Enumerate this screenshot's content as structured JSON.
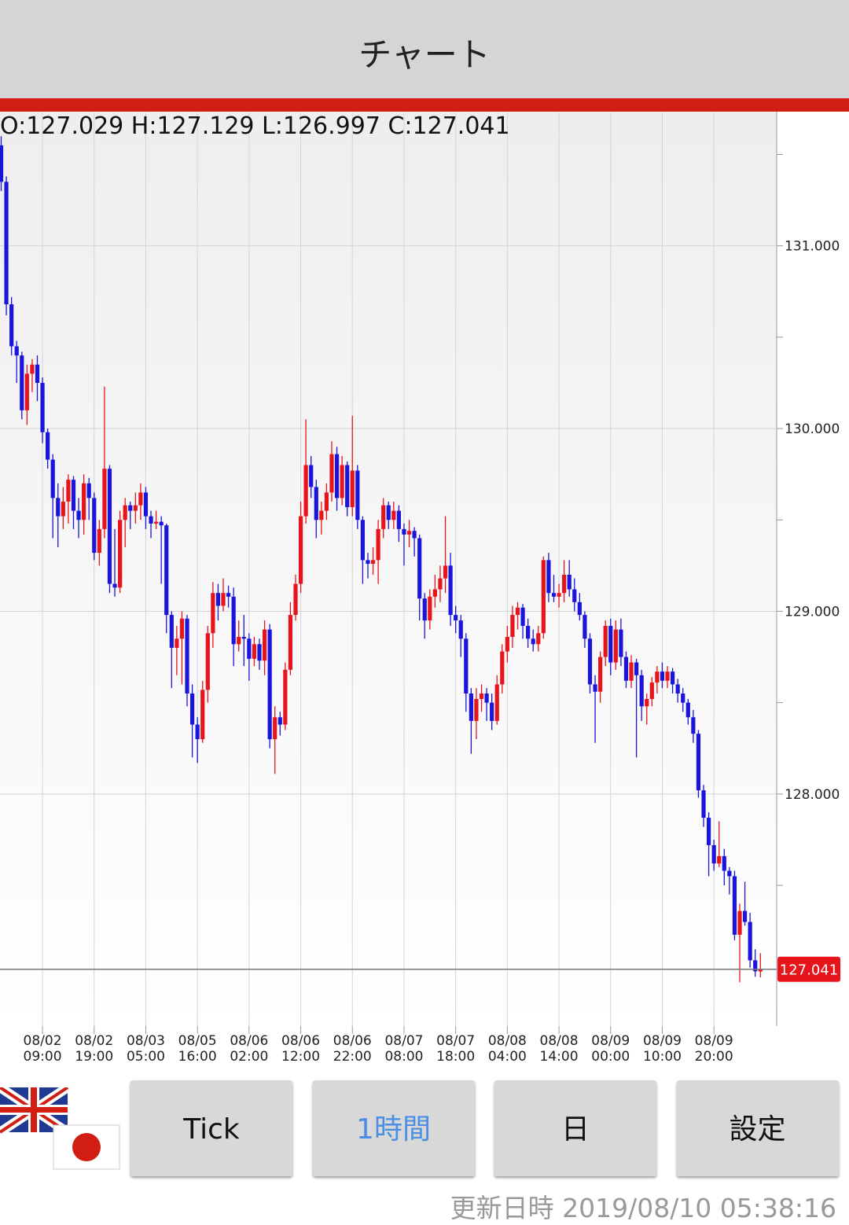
{
  "header": {
    "title": "チャート"
  },
  "readout": "O:127.029 H:127.129 L:126.997 C:127.041",
  "chart_data": {
    "type": "candlestick",
    "up_color": "#e8141c",
    "down_color": "#1a14dc",
    "ylim": [
      126.73,
      131.73
    ],
    "yticks": [
      {
        "value": 128,
        "label": "128.000"
      },
      {
        "value": 129,
        "label": "129.000"
      },
      {
        "value": 130,
        "label": "130.000"
      },
      {
        "value": 131,
        "label": "131.000"
      }
    ],
    "yminor_ticks": [
      127.5,
      128.5,
      129.5,
      130.5,
      131.5
    ],
    "price_line": 127.041,
    "categories": [
      null,
      null,
      null,
      null,
      null,
      null,
      null,
      null,
      "08/02 09:00",
      null,
      null,
      null,
      null,
      null,
      null,
      null,
      null,
      null,
      "08/02 19:00",
      null,
      null,
      null,
      null,
      null,
      null,
      null,
      null,
      null,
      "08/03 05:00",
      null,
      null,
      null,
      null,
      null,
      null,
      null,
      null,
      null,
      "08/05 16:00",
      null,
      null,
      null,
      null,
      null,
      null,
      null,
      null,
      null,
      "08/06 02:00",
      null,
      null,
      null,
      null,
      null,
      null,
      null,
      null,
      null,
      "08/06 12:00",
      null,
      null,
      null,
      null,
      null,
      null,
      null,
      null,
      null,
      "08/06 22:00",
      null,
      null,
      null,
      null,
      null,
      null,
      null,
      null,
      null,
      "08/07 08:00",
      null,
      null,
      null,
      null,
      null,
      null,
      null,
      null,
      null,
      "08/07 18:00",
      null,
      null,
      null,
      null,
      null,
      null,
      null,
      null,
      null,
      "08/08 04:00",
      null,
      null,
      null,
      null,
      null,
      null,
      null,
      null,
      null,
      "08/08 14:00",
      null,
      null,
      null,
      null,
      null,
      null,
      null,
      null,
      null,
      "08/09 00:00",
      null,
      null,
      null,
      null,
      null,
      null,
      null,
      null,
      null,
      "08/09 10:00",
      null,
      null,
      null,
      null,
      null,
      null,
      null,
      null,
      null,
      "08/09 20:00",
      null,
      null,
      null,
      null,
      null,
      null,
      null,
      null,
      null
    ],
    "ohlc": [
      [
        131.55,
        131.6,
        131.3,
        131.35
      ],
      [
        131.35,
        131.38,
        130.62,
        130.68
      ],
      [
        130.68,
        130.72,
        130.4,
        130.45
      ],
      [
        130.45,
        130.48,
        130.25,
        130.4
      ],
      [
        130.4,
        130.42,
        130.05,
        130.1
      ],
      [
        130.1,
        130.35,
        130.02,
        130.3
      ],
      [
        130.3,
        130.38,
        130.2,
        130.35
      ],
      [
        130.35,
        130.4,
        130.15,
        130.25
      ],
      [
        130.25,
        130.28,
        129.92,
        129.98
      ],
      [
        129.98,
        130.0,
        129.78,
        129.83
      ],
      [
        129.83,
        129.86,
        129.4,
        129.62
      ],
      [
        129.62,
        129.7,
        129.35,
        129.52
      ],
      [
        129.52,
        129.68,
        129.45,
        129.6
      ],
      [
        129.6,
        129.75,
        129.48,
        129.72
      ],
      [
        129.72,
        129.74,
        129.45,
        129.55
      ],
      [
        129.55,
        129.62,
        129.4,
        129.5
      ],
      [
        129.5,
        129.75,
        129.42,
        129.7
      ],
      [
        129.7,
        129.73,
        129.5,
        129.62
      ],
      [
        129.62,
        129.65,
        129.28,
        129.32
      ],
      [
        129.32,
        129.5,
        129.25,
        129.45
      ],
      [
        129.45,
        130.23,
        129.4,
        129.78
      ],
      [
        129.78,
        129.8,
        129.1,
        129.15
      ],
      [
        129.15,
        129.45,
        129.08,
        129.13
      ],
      [
        129.13,
        129.55,
        129.1,
        129.5
      ],
      [
        129.5,
        129.62,
        129.35,
        129.58
      ],
      [
        129.58,
        129.6,
        129.45,
        129.55
      ],
      [
        129.55,
        129.65,
        129.48,
        129.58
      ],
      [
        129.58,
        129.7,
        129.5,
        129.65
      ],
      [
        129.65,
        129.68,
        129.45,
        129.52
      ],
      [
        129.52,
        129.55,
        129.4,
        129.48
      ],
      [
        129.48,
        129.55,
        129.45,
        129.49
      ],
      [
        129.49,
        129.52,
        129.15,
        129.47
      ],
      [
        129.47,
        129.48,
        128.88,
        128.98
      ],
      [
        128.98,
        129.0,
        128.58,
        128.8
      ],
      [
        128.8,
        128.92,
        128.65,
        128.85
      ],
      [
        128.85,
        129.0,
        128.6,
        128.96
      ],
      [
        128.96,
        128.98,
        128.48,
        128.55
      ],
      [
        128.55,
        128.6,
        128.2,
        128.38
      ],
      [
        128.38,
        128.42,
        128.17,
        128.3
      ],
      [
        128.3,
        128.62,
        128.28,
        128.57
      ],
      [
        128.57,
        128.92,
        128.5,
        128.88
      ],
      [
        128.88,
        129.16,
        128.8,
        129.1
      ],
      [
        129.1,
        129.15,
        128.95,
        129.03
      ],
      [
        129.03,
        129.18,
        129.0,
        129.1
      ],
      [
        129.1,
        129.14,
        129.02,
        129.08
      ],
      [
        129.08,
        129.13,
        128.7,
        128.82
      ],
      [
        128.82,
        128.95,
        128.78,
        128.86
      ],
      [
        128.86,
        128.98,
        128.7,
        128.85
      ],
      [
        128.85,
        128.88,
        128.62,
        128.74
      ],
      [
        128.74,
        128.86,
        128.7,
        128.82
      ],
      [
        128.82,
        128.85,
        128.68,
        128.73
      ],
      [
        128.73,
        128.95,
        128.65,
        128.9
      ],
      [
        128.9,
        128.93,
        128.25,
        128.3
      ],
      [
        128.3,
        128.48,
        128.11,
        128.42
      ],
      [
        128.42,
        128.45,
        128.32,
        128.38
      ],
      [
        128.38,
        128.72,
        128.35,
        128.68
      ],
      [
        128.68,
        129.05,
        128.65,
        128.98
      ],
      [
        128.98,
        129.2,
        128.95,
        129.15
      ],
      [
        129.15,
        129.6,
        129.1,
        129.52
      ],
      [
        129.52,
        130.05,
        129.48,
        129.8
      ],
      [
        129.8,
        129.85,
        129.62,
        129.68
      ],
      [
        129.68,
        129.72,
        129.4,
        129.5
      ],
      [
        129.5,
        129.6,
        129.42,
        129.55
      ],
      [
        129.55,
        129.7,
        129.5,
        129.65
      ],
      [
        129.65,
        129.93,
        129.6,
        129.86
      ],
      [
        129.86,
        129.9,
        129.55,
        129.62
      ],
      [
        129.62,
        129.85,
        129.58,
        129.8
      ],
      [
        129.8,
        129.82,
        129.52,
        129.57
      ],
      [
        129.57,
        130.07,
        129.52,
        129.77
      ],
      [
        129.77,
        129.8,
        129.45,
        129.5
      ],
      [
        129.5,
        129.52,
        129.15,
        129.28
      ],
      [
        129.28,
        129.32,
        129.18,
        129.26
      ],
      [
        129.26,
        129.35,
        129.2,
        129.28
      ],
      [
        129.28,
        129.5,
        129.15,
        129.45
      ],
      [
        129.45,
        129.62,
        129.4,
        129.58
      ],
      [
        129.58,
        129.6,
        129.45,
        129.5
      ],
      [
        129.5,
        129.6,
        129.45,
        129.55
      ],
      [
        129.55,
        129.58,
        129.38,
        129.45
      ],
      [
        129.45,
        129.48,
        129.25,
        129.42
      ],
      [
        129.42,
        129.5,
        129.35,
        129.44
      ],
      [
        129.44,
        129.46,
        129.3,
        129.4
      ],
      [
        129.4,
        129.42,
        128.95,
        129.07
      ],
      [
        129.07,
        129.1,
        128.85,
        128.95
      ],
      [
        128.95,
        129.12,
        128.9,
        129.08
      ],
      [
        129.08,
        129.2,
        129.02,
        129.12
      ],
      [
        129.12,
        129.25,
        129.05,
        129.18
      ],
      [
        129.18,
        129.52,
        129.1,
        129.25
      ],
      [
        129.25,
        129.32,
        128.92,
        128.98
      ],
      [
        128.98,
        129.03,
        128.88,
        128.95
      ],
      [
        128.95,
        128.98,
        128.75,
        128.85
      ],
      [
        128.85,
        128.88,
        128.45,
        128.55
      ],
      [
        128.55,
        128.58,
        128.22,
        128.4
      ],
      [
        128.4,
        128.58,
        128.3,
        128.52
      ],
      [
        128.52,
        128.6,
        128.45,
        128.55
      ],
      [
        128.55,
        128.58,
        128.4,
        128.5
      ],
      [
        128.5,
        128.55,
        128.35,
        128.4
      ],
      [
        128.4,
        128.65,
        128.38,
        128.6
      ],
      [
        128.6,
        128.82,
        128.55,
        128.78
      ],
      [
        128.78,
        128.92,
        128.72,
        128.86
      ],
      [
        128.86,
        129.03,
        128.8,
        128.98
      ],
      [
        128.98,
        129.05,
        128.9,
        129.02
      ],
      [
        129.02,
        129.04,
        128.85,
        128.92
      ],
      [
        128.92,
        128.96,
        128.8,
        128.85
      ],
      [
        128.85,
        128.9,
        128.78,
        128.82
      ],
      [
        128.82,
        128.92,
        128.78,
        128.88
      ],
      [
        128.88,
        129.3,
        128.85,
        129.28
      ],
      [
        129.28,
        129.32,
        129.05,
        129.1
      ],
      [
        129.1,
        129.2,
        129.05,
        129.08
      ],
      [
        129.08,
        129.15,
        129.02,
        129.1
      ],
      [
        129.1,
        129.28,
        129.05,
        129.2
      ],
      [
        129.2,
        129.28,
        129.08,
        129.12
      ],
      [
        129.12,
        129.18,
        129.0,
        129.05
      ],
      [
        129.05,
        129.1,
        128.95,
        128.98
      ],
      [
        128.98,
        129.0,
        128.8,
        128.85
      ],
      [
        128.85,
        128.88,
        128.55,
        128.6
      ],
      [
        128.6,
        128.65,
        128.28,
        128.56
      ],
      [
        128.56,
        128.78,
        128.5,
        128.75
      ],
      [
        128.75,
        128.95,
        128.7,
        128.92
      ],
      [
        128.92,
        128.96,
        128.65,
        128.72
      ],
      [
        128.72,
        128.95,
        128.68,
        128.9
      ],
      [
        128.9,
        128.96,
        128.7,
        128.75
      ],
      [
        128.75,
        128.78,
        128.58,
        128.62
      ],
      [
        128.62,
        128.76,
        128.58,
        128.72
      ],
      [
        128.72,
        128.74,
        128.2,
        128.65
      ],
      [
        128.65,
        128.68,
        128.4,
        128.48
      ],
      [
        128.48,
        128.55,
        128.38,
        128.52
      ],
      [
        128.52,
        128.64,
        128.48,
        128.61
      ],
      [
        128.61,
        128.7,
        128.55,
        128.67
      ],
      [
        128.67,
        128.72,
        128.58,
        128.62
      ],
      [
        128.62,
        128.7,
        128.58,
        128.67
      ],
      [
        128.67,
        128.69,
        128.55,
        128.6
      ],
      [
        128.6,
        128.63,
        128.5,
        128.55
      ],
      [
        128.55,
        128.58,
        128.45,
        128.5
      ],
      [
        128.5,
        128.52,
        128.38,
        128.42
      ],
      [
        128.42,
        128.46,
        128.28,
        128.33
      ],
      [
        128.33,
        128.35,
        127.98,
        128.02
      ],
      [
        128.02,
        128.05,
        127.82,
        127.87
      ],
      [
        127.87,
        127.9,
        127.55,
        127.72
      ],
      [
        127.72,
        127.75,
        127.58,
        127.62
      ],
      [
        127.62,
        127.85,
        127.6,
        127.66
      ],
      [
        127.66,
        127.7,
        127.5,
        127.58
      ],
      [
        127.58,
        127.6,
        127.45,
        127.55
      ],
      [
        127.55,
        127.58,
        127.2,
        127.23
      ],
      [
        127.23,
        127.4,
        126.97,
        127.36
      ],
      [
        127.36,
        127.52,
        127.28,
        127.3
      ],
      [
        127.3,
        127.35,
        127.05,
        127.09
      ],
      [
        127.09,
        127.15,
        127.0,
        127.03
      ],
      [
        127.029,
        127.129,
        126.997,
        127.041
      ]
    ]
  },
  "buttons": [
    "Tick",
    "1時間",
    "日",
    "設定"
  ],
  "footer": {
    "updated": "更新日時 2019/08/10 05:38:16"
  }
}
